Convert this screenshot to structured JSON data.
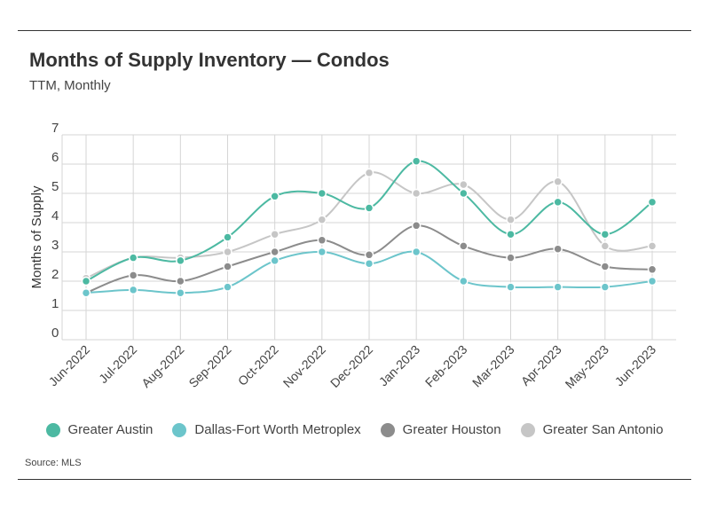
{
  "header": {
    "title": "Months of Supply Inventory — Condos",
    "subtitle": "TTM, Monthly"
  },
  "footer": {
    "source": "Source: MLS"
  },
  "chart_data": {
    "type": "line",
    "title": "Months of Supply Inventory — Condos",
    "subtitle": "TTM, Monthly",
    "xlabel": "",
    "ylabel": "Months of Supply",
    "ylim": [
      0,
      7
    ],
    "yticks": [
      "0",
      "1",
      "2",
      "3",
      "4",
      "5",
      "6",
      "7"
    ],
    "grid": true,
    "legend_position": "bottom",
    "categories": [
      "Jun-2022",
      "Jul-2022",
      "Aug-2022",
      "Sep-2022",
      "Oct-2022",
      "Nov-2022",
      "Dec-2022",
      "Jan-2023",
      "Feb-2023",
      "Mar-2023",
      "Apr-2023",
      "May-2023",
      "Jun-2023"
    ],
    "series": [
      {
        "name": "Greater Austin",
        "color": "#4cb9a2",
        "values": [
          2.0,
          2.8,
          2.7,
          3.5,
          4.9,
          5.0,
          4.5,
          6.1,
          5.0,
          3.6,
          4.7,
          3.6,
          4.7
        ]
      },
      {
        "name": "Dallas-Fort Worth Metroplex",
        "color": "#6cc5cb",
        "values": [
          1.6,
          1.7,
          1.6,
          1.8,
          2.7,
          3.0,
          2.6,
          3.0,
          2.0,
          1.8,
          1.8,
          1.8,
          2.0
        ]
      },
      {
        "name": "Greater Houston",
        "color": "#8c8c8c",
        "values": [
          1.6,
          2.2,
          2.0,
          2.5,
          3.0,
          3.4,
          2.9,
          3.9,
          3.2,
          2.8,
          3.1,
          2.5,
          2.4
        ]
      },
      {
        "name": "Greater San Antonio",
        "color": "#c6c6c6",
        "values": [
          2.1,
          2.8,
          2.8,
          3.0,
          3.6,
          4.1,
          5.7,
          5.0,
          5.3,
          4.1,
          5.4,
          3.2,
          3.2
        ]
      }
    ]
  }
}
